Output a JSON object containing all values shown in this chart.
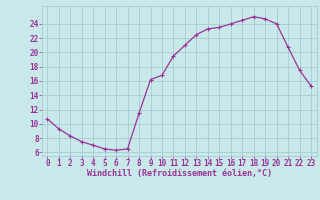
{
  "x_values": [
    0,
    1,
    2,
    3,
    4,
    5,
    6,
    7,
    8,
    9,
    10,
    11,
    12,
    13,
    14,
    15,
    16,
    17,
    18,
    19,
    20,
    21,
    22,
    23
  ],
  "y_values": [
    10.7,
    9.3,
    8.3,
    7.5,
    7.0,
    6.5,
    6.3,
    6.5,
    11.5,
    16.2,
    16.8,
    19.5,
    21.0,
    22.5,
    23.3,
    23.5,
    24.0,
    24.5,
    25.0,
    24.7,
    24.0,
    20.7,
    17.5,
    15.3
  ],
  "line_color": "#993399",
  "marker": "+",
  "bg_color": "#c8e8ea",
  "grid_color": "#a0c8cc",
  "xlabel": "Windchill (Refroidissement éolien,°C)",
  "xlabel_color": "#993399",
  "tick_color": "#993399",
  "xlim": [
    -0.5,
    23.5
  ],
  "ylim": [
    5.5,
    26.5
  ],
  "yticks": [
    6,
    8,
    10,
    12,
    14,
    16,
    18,
    20,
    22,
    24
  ],
  "xticks": [
    0,
    1,
    2,
    3,
    4,
    5,
    6,
    7,
    8,
    9,
    10,
    11,
    12,
    13,
    14,
    15,
    16,
    17,
    18,
    19,
    20,
    21,
    22,
    23
  ],
  "font_size_ticks": 5.5,
  "font_size_xlabel": 6.0,
  "marker_size": 2.5,
  "line_width": 0.9
}
